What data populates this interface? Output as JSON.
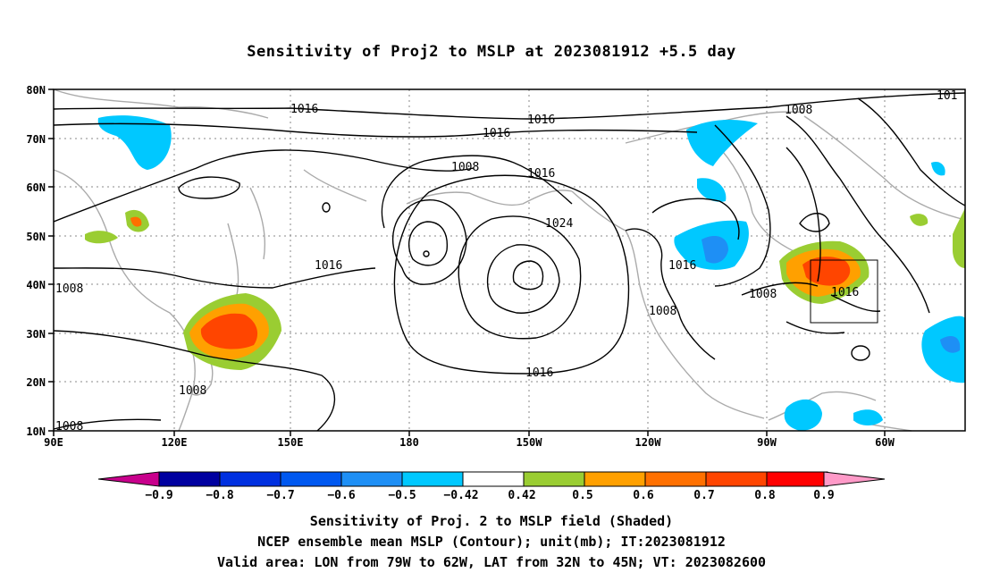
{
  "title": "Sensitivity of Proj2 to MSLP at 2023081912 +5.5 day",
  "map": {
    "lat_ticks": [
      "80N",
      "70N",
      "60N",
      "50N",
      "40N",
      "30N",
      "20N",
      "10N"
    ],
    "lon_ticks": [
      "90E",
      "120E",
      "150E",
      "180",
      "150W",
      "120W",
      "90W",
      "60W"
    ],
    "valid_box": {
      "lon_west": "79W",
      "lon_east": "62W",
      "lat_south": "32N",
      "lat_north": "45N"
    }
  },
  "contour_labels": [
    "1016",
    "1016",
    "1016",
    "1008",
    "1016",
    "1024",
    "1016",
    "1016",
    "1008",
    "1008",
    "1016",
    "1008",
    "1016",
    "1008",
    "1008",
    "101",
    "1008",
    "1008"
  ],
  "colorbar": {
    "labels": [
      "−0.9",
      "−0.8",
      "−0.7",
      "−0.6",
      "−0.5",
      "−0.42",
      "0.42",
      "0.5",
      "0.6",
      "0.7",
      "0.8",
      "0.9"
    ],
    "colors": [
      "#0000a0",
      "#0030e0",
      "#0058f0",
      "#1e8ff5",
      "#00c8ff",
      "#ffffff",
      "#9acd32",
      "#ffa000",
      "#ff7000",
      "#ff4500",
      "#ff0000"
    ],
    "end_low": "#c8008c",
    "end_high": "#ff9ac8"
  },
  "captions": [
    "Sensitivity of Proj. 2 to MSLP field (Shaded)",
    "NCEP ensemble mean MSLP (Contour); unit(mb); IT:2023081912",
    "Valid area: LON from 79W to 62W, LAT from 32N to 45N; VT: 2023082600"
  ]
}
